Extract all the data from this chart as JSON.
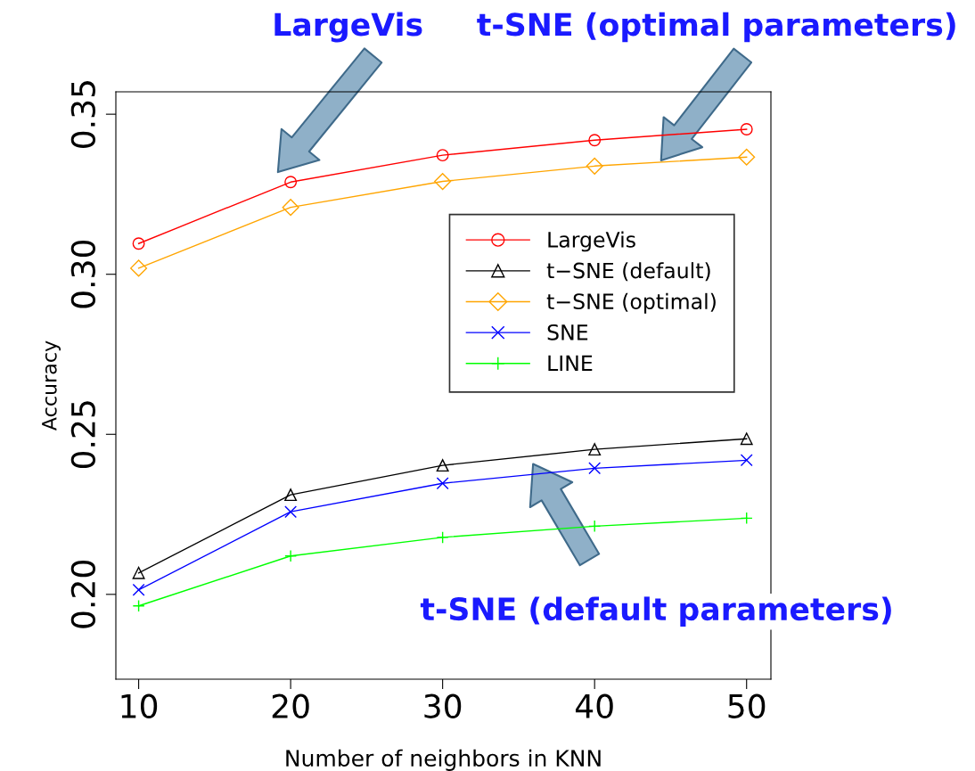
{
  "chart_data": {
    "type": "line",
    "xlabel": "Number of neighbors in KNN",
    "ylabel": "Accuracy",
    "x": [
      10,
      20,
      30,
      40,
      50
    ],
    "series": [
      {
        "name": "LargeVis",
        "color": "#ff0000",
        "marker": "circle",
        "values": [
          0.3096,
          0.3288,
          0.3372,
          0.3419,
          0.3453
        ]
      },
      {
        "name": "t−SNE (default)",
        "color": "#000000",
        "marker": "triangle",
        "values": [
          0.2067,
          0.2311,
          0.2403,
          0.2453,
          0.2486
        ]
      },
      {
        "name": "t−SNE (optimal)",
        "color": "#ffa500",
        "marker": "diamond",
        "values": [
          0.3019,
          0.3209,
          0.329,
          0.3338,
          0.3366
        ]
      },
      {
        "name": "SNE",
        "color": "#0000ff",
        "marker": "cross",
        "values": [
          0.2014,
          0.2258,
          0.2347,
          0.2394,
          0.2419
        ]
      },
      {
        "name": "LINE",
        "color": "#00ff00",
        "marker": "plus",
        "values": [
          0.1964,
          0.212,
          0.2178,
          0.2213,
          0.2238
        ]
      }
    ],
    "xlim": [
      8.5,
      51.6
    ],
    "ylim": [
      0.1735,
      0.357
    ],
    "xticks": [
      10,
      20,
      30,
      40,
      50
    ],
    "yticks": [
      {
        "value": 0.2,
        "label": "0.20"
      },
      {
        "value": 0.25,
        "label": "0.25"
      },
      {
        "value": 0.3,
        "label": "0.30"
      },
      {
        "value": 0.35,
        "label": "0.35"
      }
    ],
    "grid": false,
    "legend": "right",
    "line_style": "solid",
    "annotations": [
      "LargeVis",
      "t-SNE (optimal parameters)",
      "t-SNE (default parameters)"
    ]
  }
}
